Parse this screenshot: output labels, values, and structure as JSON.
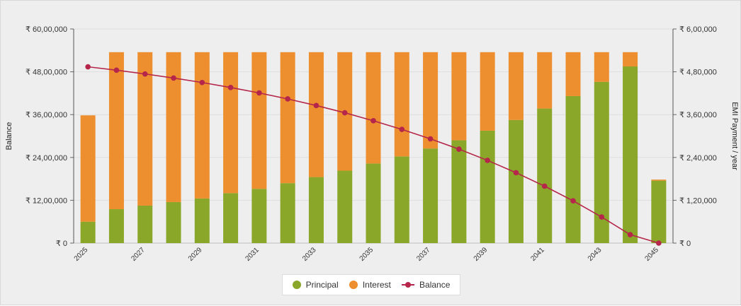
{
  "chart_data": {
    "type": "bar",
    "stacked": true,
    "categories": [
      "2025",
      "2026",
      "2027",
      "2028",
      "2029",
      "2030",
      "2031",
      "2032",
      "2033",
      "2034",
      "2035",
      "2036",
      "2037",
      "2038",
      "2039",
      "2040",
      "2041",
      "2042",
      "2043",
      "2044",
      "2045"
    ],
    "x_tick_labels": [
      "2025",
      "2027",
      "2029",
      "2031",
      "2033",
      "2035",
      "2037",
      "2039",
      "2041",
      "2043",
      "2045"
    ],
    "series": [
      {
        "name": "Principal",
        "type": "bar",
        "axis": "right",
        "color": "#8aa729",
        "values": [
          60000,
          95000,
          105000,
          115000,
          125000,
          140000,
          152000,
          168000,
          185000,
          203000,
          223000,
          243000,
          265000,
          288000,
          315000,
          345000,
          377000,
          412000,
          452000,
          495000,
          175000
        ]
      },
      {
        "name": "Interest",
        "type": "bar",
        "axis": "right",
        "color": "#ed8e2f",
        "values": [
          298000,
          440000,
          430000,
          420000,
          410000,
          395000,
          383000,
          367000,
          350000,
          332000,
          312000,
          292000,
          270000,
          247000,
          220000,
          190000,
          158000,
          123000,
          83000,
          40000,
          3000
        ]
      },
      {
        "name": "Balance",
        "type": "line",
        "axis": "left",
        "color": "#b5264a",
        "values": [
          4940000,
          4845000,
          4740000,
          4625000,
          4500000,
          4360000,
          4208000,
          4040000,
          3855000,
          3652000,
          3429000,
          3186000,
          2921000,
          2633000,
          2318000,
          1973000,
          1596000,
          1184000,
          732000,
          237000,
          0
        ]
      }
    ],
    "left_axis": {
      "label": "Balance",
      "min": 0,
      "max": 6000000,
      "ticks": [
        "₹ 0",
        "₹ 12,00,000",
        "₹ 24,00,000",
        "₹ 36,00,000",
        "₹ 48,00,000",
        "₹ 60,00,000"
      ]
    },
    "right_axis": {
      "label": "EMI Payment / year",
      "min": 0,
      "max": 600000,
      "ticks": [
        "₹ 0",
        "₹ 1,20,000",
        "₹ 2,40,000",
        "₹ 3,60,000",
        "₹ 4,80,000",
        "₹ 6,00,000"
      ]
    },
    "grid": true,
    "legend_position": "bottom-center"
  },
  "legend": [
    {
      "label": "Principal",
      "color": "#8aa729"
    },
    {
      "label": "Interest",
      "color": "#ed8e2f"
    },
    {
      "label": "Balance",
      "color": "#b5264a"
    }
  ]
}
